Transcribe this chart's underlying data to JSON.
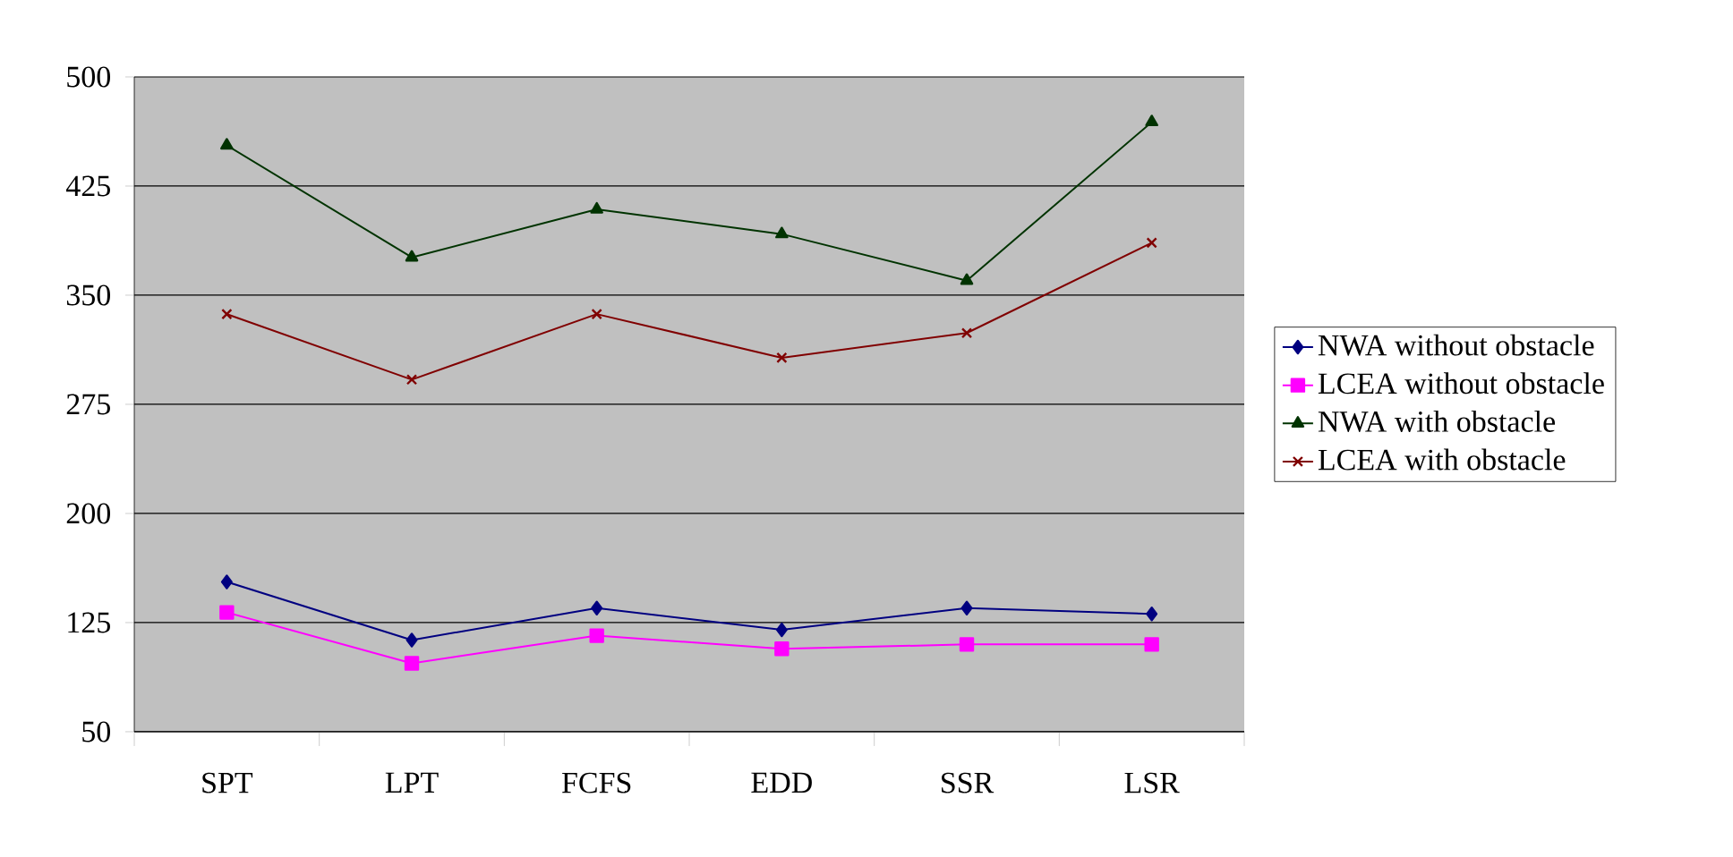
{
  "chart_data": {
    "type": "line",
    "categories": [
      "SPT",
      "LPT",
      "FCFS",
      "EDD",
      "SSR",
      "LSR"
    ],
    "series": [
      {
        "name": "NWA without obstacle",
        "color": "#000080",
        "marker": "diamond",
        "values": [
          153,
          113,
          135,
          120,
          135,
          131
        ]
      },
      {
        "name": "LCEA without obstacle",
        "color": "#ff00ff",
        "marker": "square",
        "values": [
          132,
          97,
          116,
          107,
          110,
          110
        ]
      },
      {
        "name": "NWA with obstacle",
        "color": "#003300",
        "marker": "triangle",
        "values": [
          453,
          376,
          409,
          392,
          360,
          469
        ]
      },
      {
        "name": "LCEA with obstacle",
        "color": "#800000",
        "marker": "cross",
        "values": [
          337,
          292,
          337,
          307,
          324,
          386
        ]
      }
    ],
    "ylim": [
      50,
      500
    ],
    "yticks": [
      50,
      125,
      200,
      275,
      350,
      425,
      500
    ],
    "grid": "y",
    "legend": "right"
  }
}
